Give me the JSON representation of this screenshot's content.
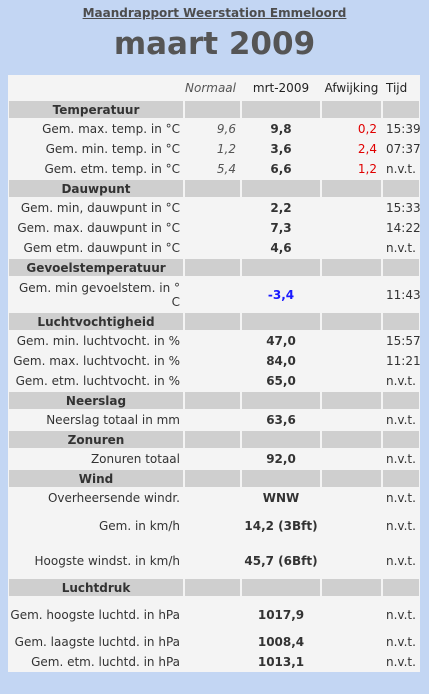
{
  "report_link": "Maandrapport Weerstation Emmeloord",
  "month": "maart 2009",
  "header": {
    "normaal": "Normaal",
    "month_col": "mrt-2009",
    "afwijking": "Afwijking",
    "tijd": "Tijd"
  },
  "sections": [
    {
      "title": "Temperatuur",
      "rows": [
        {
          "label": "Gem. max. temp. in °C",
          "normaal": "9,6",
          "value": "9,8",
          "afwijking": "0,2",
          "tijd": "15:39"
        },
        {
          "label": "Gem. min. temp. in °C",
          "normaal": "1,2",
          "value": "3,6",
          "afwijking": "2,4",
          "tijd": "07:37"
        },
        {
          "label": "Gem. etm. temp. in °C",
          "normaal": "5,4",
          "value": "6,6",
          "afwijking": "1,2",
          "tijd": "n.v.t."
        }
      ]
    },
    {
      "title": "Dauwpunt",
      "rows": [
        {
          "label": "Gem. min, dauwpunt in °C",
          "normaal": "",
          "value": "2,2",
          "afwijking": "",
          "tijd": "15:33"
        },
        {
          "label": "Gem. max. dauwpunt in °C",
          "normaal": "",
          "value": "7,3",
          "afwijking": "",
          "tijd": "14:22"
        },
        {
          "label": "Gem etm. dauwpunt in °C",
          "normaal": "",
          "value": "4,6",
          "afwijking": "",
          "tijd": "n.v.t."
        }
      ]
    },
    {
      "title": "Gevoelstemperatuur",
      "rows": [
        {
          "label": "Gem. min gevoelstem. in ° C",
          "normaal": "",
          "value": "-3,4",
          "afwijking": "",
          "tijd": "11:43",
          "blue": true,
          "tall": true
        }
      ]
    },
    {
      "title": "Luchtvochtigheid",
      "rows": [
        {
          "label": "Gem. min. luchtvocht. in %",
          "normaal": "",
          "value": "47,0",
          "afwijking": "",
          "tijd": "15:57"
        },
        {
          "label": "Gem. max. luchtvocht. in %",
          "normaal": "",
          "value": "84,0",
          "afwijking": "",
          "tijd": "11:21"
        },
        {
          "label": "Gem. etm. luchtvocht. in %",
          "normaal": "",
          "value": "65,0",
          "afwijking": "",
          "tijd": "n.v.t."
        }
      ]
    },
    {
      "title": "Neerslag",
      "rows": [
        {
          "label": "Neerslag totaal in mm",
          "normaal": "",
          "value": "63,6",
          "afwijking": "",
          "tijd": "n.v.t."
        }
      ]
    },
    {
      "title": "Zonuren",
      "rows": [
        {
          "label": "Zonuren totaal",
          "normaal": "",
          "value": "92,0",
          "afwijking": "",
          "tijd": "n.v.t."
        }
      ]
    },
    {
      "title": "Wind",
      "rows": [
        {
          "label": "Overheersende windr.",
          "normaal": "",
          "value": "WNW",
          "afwijking": "",
          "tijd": "n.v.t."
        },
        {
          "label": "Gem. in km/h",
          "normaal": "",
          "value": "14,2 (3Bft)",
          "afwijking": "",
          "tijd": "n.v.t.",
          "tall": true
        },
        {
          "label": "Hoogste windst. in km/h",
          "normaal": "",
          "value": "45,7 (6Bft)",
          "afwijking": "",
          "tijd": "n.v.t.",
          "tall": true
        }
      ]
    },
    {
      "title": "Luchtdruk",
      "rows": [
        {
          "label": "Gem. hoogste luchtd. in hPa",
          "normaal": "",
          "value": "1017,9",
          "afwijking": "",
          "tijd": "n.v.t.",
          "tall": true
        },
        {
          "label": "Gem. laagste luchtd. in hPa",
          "normaal": "",
          "value": "1008,4",
          "afwijking": "",
          "tijd": "n.v.t."
        },
        {
          "label": "Gem. etm. luchtd. in hPa",
          "normaal": "",
          "value": "1013,1",
          "afwijking": "",
          "tijd": "n.v.t."
        }
      ]
    }
  ]
}
